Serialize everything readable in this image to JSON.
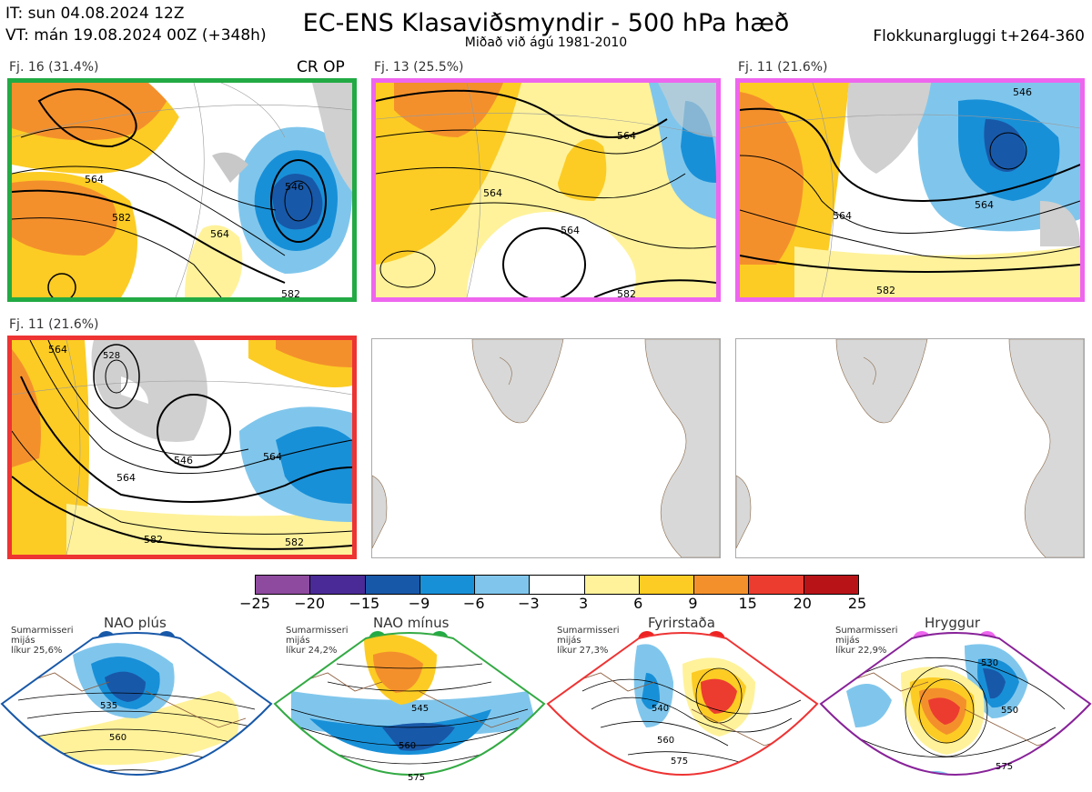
{
  "header": {
    "it": "IT: sun 04.08.2024 12Z",
    "vt": "VT: mán 19.08.2024 00Z  (+348h)",
    "title": "EC-ENS Klasaviðsmyndir - 500 hPa hæð",
    "subtitle": "Miðað við ágú 1981-2010",
    "window": "Flokkunargluggi t+264-360"
  },
  "panels": [
    {
      "label": "Fj. 16 (31.4%)",
      "border": "#22aa44",
      "op_label": "CR OP",
      "contours": [
        "564",
        "582",
        "546",
        "564",
        "582"
      ]
    },
    {
      "label": "Fj. 13 (25.5%)",
      "border": "#ee66ee",
      "contours": [
        "564",
        "564",
        "564",
        "582"
      ]
    },
    {
      "label": "Fj. 11 (21.6%)",
      "border": "#ee66ee",
      "contours": [
        "546",
        "564",
        "564",
        "582"
      ]
    },
    {
      "label": "Fj. 11 (21.6%)",
      "border": "#ee3333",
      "contours": [
        "564",
        "546",
        "564",
        "564",
        "582",
        "582",
        "528"
      ]
    },
    {
      "label": "",
      "border": "none"
    },
    {
      "label": "",
      "border": "none"
    }
  ],
  "colorbar": {
    "ticks": [
      "−25",
      "−20",
      "−15",
      "−9",
      "−6",
      "−3",
      "3",
      "6",
      "9",
      "15",
      "20",
      "25"
    ],
    "colors": [
      "#8e4a9e",
      "#4a2a96",
      "#1858a8",
      "#1890d8",
      "#80c6ec",
      "#ffffff",
      "#fff29a",
      "#fccc24",
      "#f4902c",
      "#ec3c30",
      "#b81418"
    ]
  },
  "regimes": [
    {
      "name": "NAO plús",
      "note": "Sumarmisseri\nmijás\nlíkur 25,6%",
      "border": "#1858a8",
      "dot": "#1858a8",
      "contours": [
        "535",
        "560"
      ]
    },
    {
      "name": "NAO mínus",
      "note": "Sumarmisseri\nmijás\nlíkur 24,2%",
      "border": "#33aa44",
      "dot": "#22aa44",
      "contours": [
        "545",
        "560",
        "575"
      ]
    },
    {
      "name": "Fyrirstaða",
      "note": "Sumarmisseri\nmijás\nlíkur 27,3%",
      "border": "#ee3333",
      "dot": "#ee2222",
      "contours": [
        "540",
        "560",
        "575"
      ]
    },
    {
      "name": "Hryggur",
      "note": "Sumarmisseri\nmijás\nlíkur 22,9%",
      "border": "#882299",
      "dot": "#ee66ee",
      "contours": [
        "530",
        "550",
        "575"
      ]
    }
  ]
}
